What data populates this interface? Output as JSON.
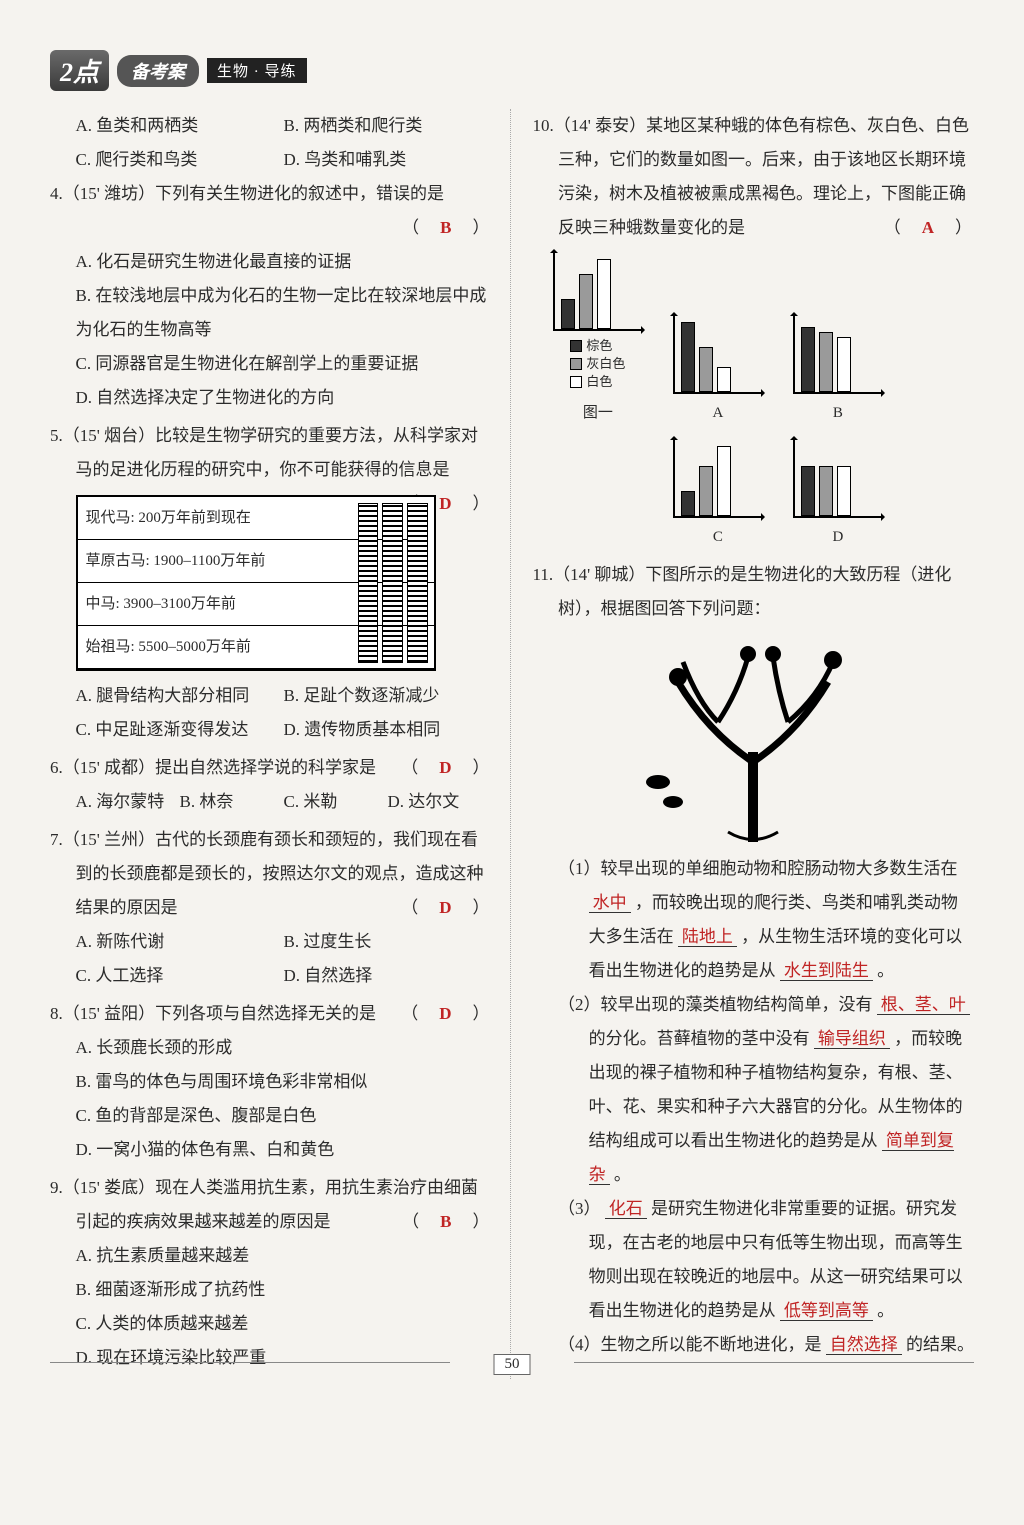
{
  "header": {
    "badge": "2点",
    "pill": "备考案",
    "tag": "生物 · 导练"
  },
  "page_number": "50",
  "answer_color": "#c02424",
  "left": {
    "q3_opts": {
      "A": "A. 鱼类和两栖类",
      "B": "B. 两栖类和爬行类",
      "C": "C. 爬行类和鸟类",
      "D": "D. 鸟类和哺乳类"
    },
    "q4": {
      "stem": "4.（15' 潍坊）下列有关生物进化的叙述中，错误的是",
      "answer": "B",
      "opts": {
        "A": "A. 化石是研究生物进化最直接的证据",
        "B": "B. 在较浅地层中成为化石的生物一定比在较深地层中成为化石的生物高等",
        "C": "C. 同源器官是生物进化在解剖学上的重要证据",
        "D": "D. 自然选择决定了生物进化的方向"
      }
    },
    "q5": {
      "stem": "5.（15' 烟台）比较是生物学研究的重要方法，从科学家对马的足进化历程的研究中，你不可能获得的信息是",
      "answer": "D",
      "horse_rows": [
        "现代马: 200万年前到现在",
        "草原古马: 1900–1100万年前",
        "中马: 3900–3100万年前",
        "始祖马: 5500–5000万年前"
      ],
      "opts": {
        "A": "A. 腿骨结构大部分相同",
        "B": "B. 足趾个数逐渐减少",
        "C": "C. 中足趾逐渐变得发达",
        "D": "D. 遗传物质基本相同"
      }
    },
    "q6": {
      "stem": "6.（15' 成都）提出自然选择学说的科学家是",
      "answer": "D",
      "opts": {
        "A": "A. 海尔蒙特",
        "B": "B. 林奈",
        "C": "C. 米勒",
        "D": "D. 达尔文"
      }
    },
    "q7": {
      "stem": "7.（15' 兰州）古代的长颈鹿有颈长和颈短的，我们现在看到的长颈鹿都是颈长的，按照达尔文的观点，造成这种结果的原因是",
      "answer": "D",
      "opts": {
        "A": "A. 新陈代谢",
        "B": "B. 过度生长",
        "C": "C. 人工选择",
        "D": "D. 自然选择"
      }
    },
    "q8": {
      "stem": "8.（15' 益阳）下列各项与自然选择无关的是",
      "answer": "D",
      "opts": {
        "A": "A. 长颈鹿长颈的形成",
        "B": "B. 雷鸟的体色与周围环境色彩非常相似",
        "C": "C. 鱼的背部是深色、腹部是白色",
        "D": "D. 一窝小猫的体色有黑、白和黄色"
      }
    },
    "q9": {
      "stem": "9.（15' 娄底）现在人类滥用抗生素，用抗生素治疗由细菌引起的疾病效果越来越差的原因是",
      "answer": "B",
      "opts": {
        "A": "A. 抗生素质量越来越差",
        "B": "B. 细菌逐渐形成了抗药性",
        "C": "C. 人类的体质越来越差",
        "D": "D. 现在环境污染比较严重"
      }
    }
  },
  "right": {
    "q10": {
      "stem": "10.（14' 泰安）某地区某种蛾的体色有棕色、灰白色、白色三种，它们的数量如图一。后来，由于该地区长期环境污染，树木及植被被熏成黑褐色。理论上，下图能正确反映三种蛾数量变化的是",
      "answer": "A",
      "legend": {
        "brown": "棕色",
        "graywhite": "灰白色",
        "white": "白色"
      },
      "fig1_label": "图一",
      "charts": {
        "fig1": {
          "bars": [
            30,
            55,
            70
          ],
          "fills": [
            "#333333",
            "#9a9a9a",
            "#ffffff"
          ]
        },
        "A": {
          "bars": [
            70,
            45,
            25
          ],
          "fills": [
            "#333333",
            "#9a9a9a",
            "#ffffff"
          ]
        },
        "B": {
          "bars": [
            65,
            60,
            55
          ],
          "fills": [
            "#333333",
            "#9a9a9a",
            "#ffffff"
          ]
        },
        "C": {
          "bars": [
            25,
            50,
            70
          ],
          "fills": [
            "#333333",
            "#9a9a9a",
            "#ffffff"
          ]
        },
        "D": {
          "bars": [
            50,
            50,
            50
          ],
          "fills": [
            "#333333",
            "#9a9a9a",
            "#ffffff"
          ]
        }
      }
    },
    "q11": {
      "stem": "11.（14' 聊城）下图所示的是生物进化的大致历程（进化树），根据图回答下列问题：",
      "sub1_a": "（1）较早出现的单细胞动物和腔肠动物大多数生活在",
      "sub1_f1": "水中",
      "sub1_b": "，而较晚出现的爬行类、鸟类和哺乳类动物大多生活在",
      "sub1_f2": "陆地上",
      "sub1_c": "，从生物生活环境的变化可以看出生物进化的趋势是从",
      "sub1_f3": "水生到陆生",
      "sub1_d": "。",
      "sub2_a": "（2）较早出现的藻类植物结构简单，没有",
      "sub2_f1": "根、茎、叶",
      "sub2_b": "的分化。苔藓植物的茎中没有",
      "sub2_f2": "输导组织",
      "sub2_c": "，而较晚出现的裸子植物和种子植物结构复杂，有根、茎、叶、花、果实和种子六大器官的分化。从生物体的结构组成可以看出生物进化的趋势是从",
      "sub2_f3": "简单到复杂",
      "sub2_d": "。",
      "sub3_a": "（3）",
      "sub3_f1": "化石",
      "sub3_b": "是研究生物进化非常重要的证据。研究发现，在古老的地层中只有低等生物出现，而高等生物则出现在较晚近的地层中。从这一研究结果可以看出生物进化的趋势是从",
      "sub3_f2": "低等到高等",
      "sub3_c": "。",
      "sub4_a": "（4）生物之所以能不断地进化，是",
      "sub4_f1": "自然选择",
      "sub4_b": "的结果。"
    }
  }
}
